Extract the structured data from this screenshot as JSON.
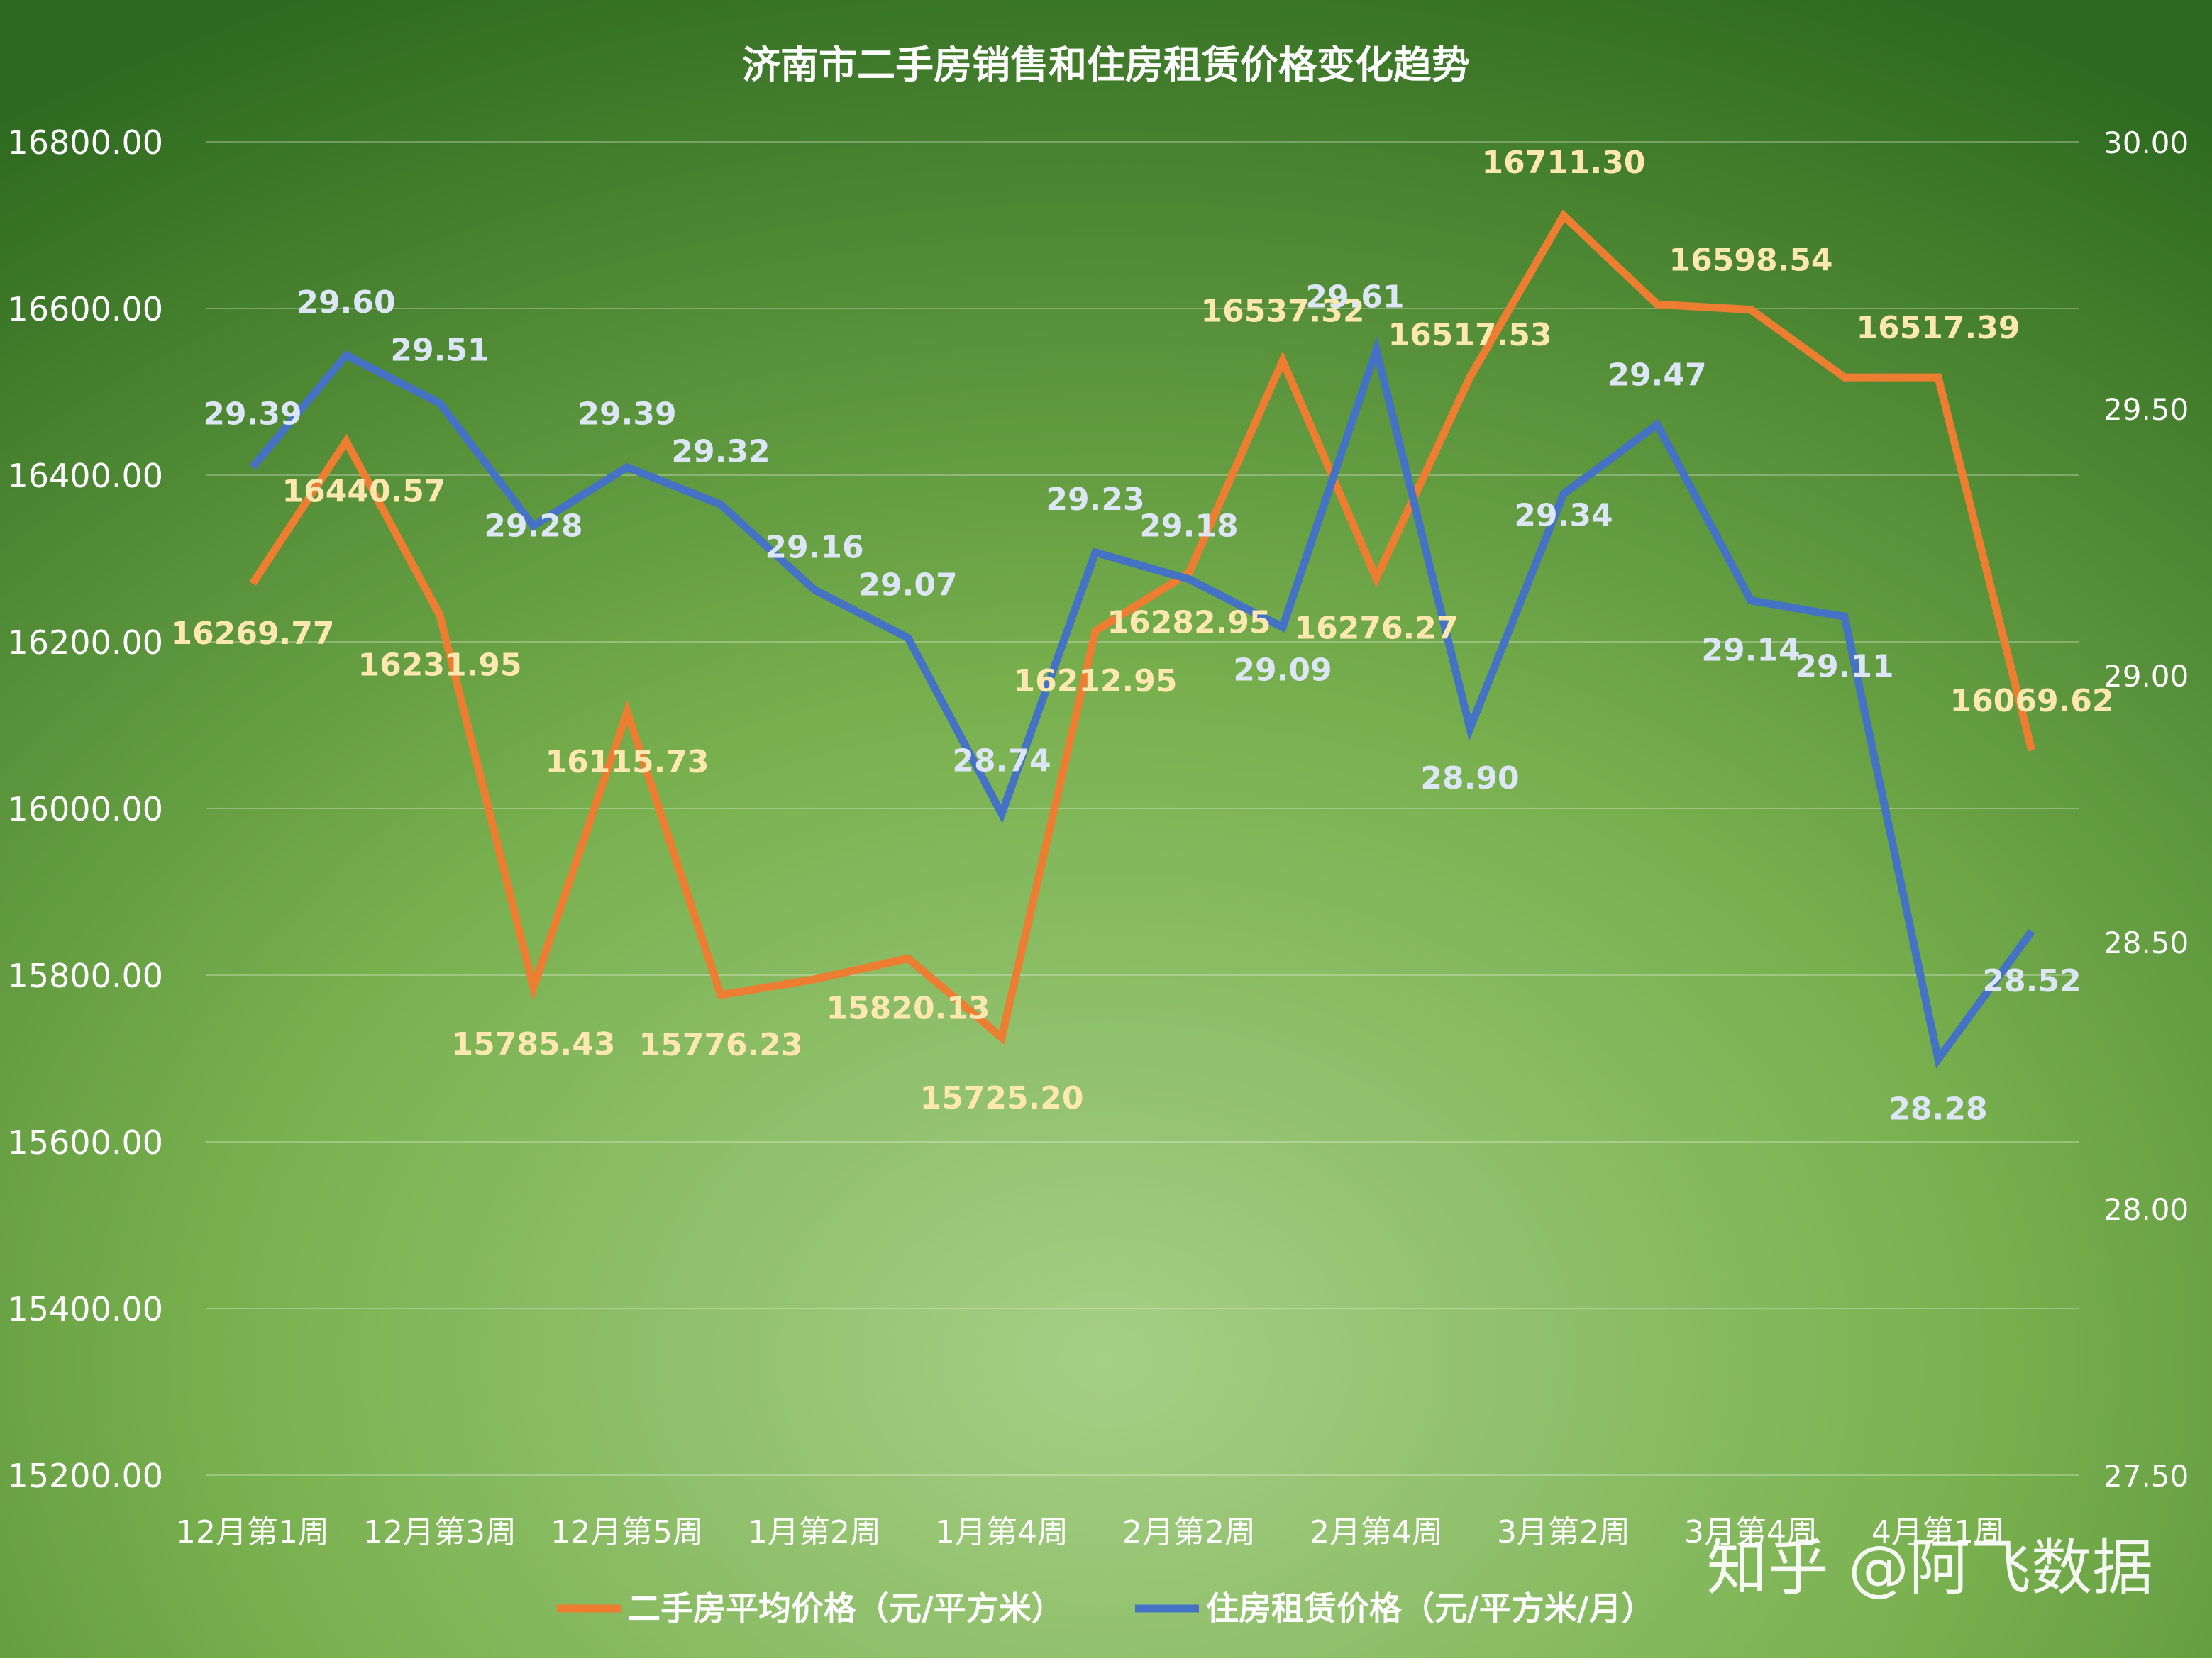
{
  "chart_data": {
    "type": "line",
    "title": "济南市二手房销售和住房租赁价格变化趋势",
    "x_tick_labels": [
      "12月第1周",
      "12月第3周",
      "12月第5周",
      "1月第2周",
      "1月第4周",
      "2月第2周",
      "2月第4周",
      "3月第2周",
      "3月第4周",
      "4月第1周"
    ],
    "y_left": {
      "ylim": [
        15200,
        16800
      ],
      "ticks": [
        "15200.00",
        "15400.00",
        "15600.00",
        "15800.00",
        "16000.00",
        "16200.00",
        "16400.00",
        "16600.00",
        "16800.00"
      ]
    },
    "y_right": {
      "ylim": [
        27.5,
        30.0
      ],
      "ticks": [
        "27.50",
        "28.00",
        "28.50",
        "29.00",
        "29.50",
        "30.00"
      ]
    },
    "grid": true,
    "legend_position": "bottom",
    "series": [
      {
        "name": "二手房平均价格（元/平方米）",
        "axis": "left",
        "color": "#ED7D31",
        "label_color": "#FFE8B0",
        "values": [
          16269.77,
          16440.57,
          16231.95,
          15785.43,
          16115.73,
          15776.23,
          15795,
          15820.13,
          15725.2,
          16212.95,
          16282.95,
          16537.32,
          16276.27,
          16517.53,
          16711.3,
          16605,
          16598.54,
          16517.39,
          16517.39,
          16069.62
        ],
        "labels": [
          "16269.77",
          "16440.57",
          "16231.95",
          "15785.43",
          "16115.73",
          "15776.23",
          "",
          "15820.13",
          "15725.20",
          "16212.95",
          "16282.95",
          "16537.32",
          "16276.27",
          "16517.53",
          "16711.30",
          "",
          "16598.54",
          "",
          "16517.39",
          "16069.62"
        ]
      },
      {
        "name": "住房租赁价格（元/平方米/月）",
        "axis": "right",
        "color": "#4472C4",
        "label_color": "#DCE6F7",
        "values": [
          29.39,
          29.6,
          29.51,
          29.28,
          29.39,
          29.32,
          29.16,
          29.07,
          28.74,
          29.23,
          29.18,
          29.09,
          29.61,
          28.9,
          29.34,
          29.47,
          29.14,
          29.11,
          28.28,
          28.52
        ],
        "labels": [
          "29.39",
          "29.60",
          "29.51",
          "29.28",
          "29.39",
          "29.32",
          "29.16",
          "29.07",
          "28.74",
          "29.23",
          "29.18",
          "29.09",
          "29.61",
          "28.90",
          "29.34",
          "29.47",
          "29.14",
          "29.11",
          "28.28",
          "28.52"
        ]
      }
    ]
  },
  "watermark": "知乎 @阿飞数据"
}
